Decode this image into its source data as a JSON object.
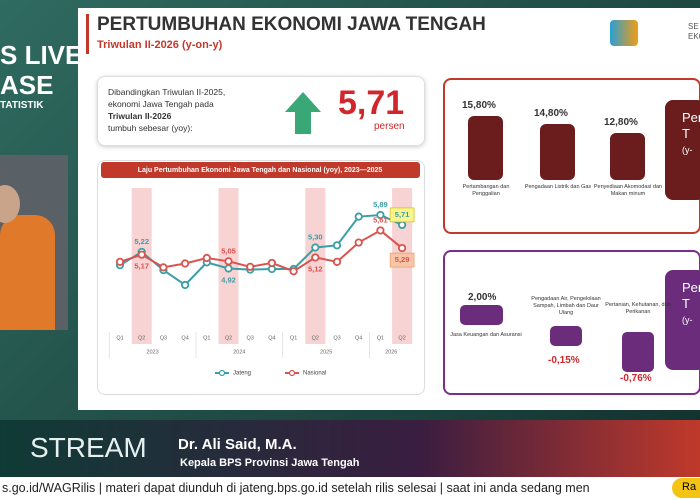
{
  "broadcast": {
    "logo_lines": [
      "S LIVE",
      "ASE",
      "TATISTIK"
    ],
    "stream": "STREAM",
    "speaker": "Dr. Ali Said, M.A.",
    "speaker_role": "Kepala BPS Provinsi Jawa Tengah",
    "ticker": "s.go.id/WAGRilis | materi dapat diunduh di jateng.bps.go.id setelah rilis selesai | saat ini anda sedang men",
    "ticker_tag": "Ra"
  },
  "slide": {
    "title": "PERTUMBUHAN EKONOMI JAWA TENGAH",
    "subtitle": "Triwulan II-2026 (y-on-y)",
    "logo_lines": [
      "SE",
      "EKONO"
    ],
    "summary": {
      "lines": [
        "Dibandingkan Triwulan II-2025,",
        "ekonomi Jawa Tengah pada",
        "Triwulan II-2026",
        "tumbuh sebesar (yoy):"
      ],
      "value": "5,71",
      "unit": "persen"
    },
    "top_sectors": [
      {
        "value": "15,80%",
        "label": "Pertambangan dan Penggalian"
      },
      {
        "value": "14,80%",
        "label": "Pengadaan Listrik dan Gas"
      },
      {
        "value": "12,80%",
        "label": "Penyediaan Akomodasi dan Makan minum"
      }
    ],
    "top_panel_lines": [
      "Per",
      "T",
      "(y-"
    ],
    "bottom_sectors": [
      {
        "value": "2,00%",
        "label": "Jasa Keuangan dan Asuransi"
      },
      {
        "value": "-0,15%",
        "label": "Pengadaan Air, Pengelolaan Sampah, Limbah dan Daur Ulang"
      },
      {
        "value": "-0,76%",
        "label": "Pertanian, Kehutanan, dan Perikanan"
      }
    ],
    "bottom_panel_lines": [
      "Per",
      "T",
      "(y-"
    ]
  },
  "chart_data": {
    "type": "line",
    "title": "Laju Pertumbuhan Ekonomi Jawa Tengah dan Nasional (yoy), 2023—2025",
    "categories": [
      "Q1",
      "Q2",
      "Q3",
      "Q4",
      "Q1",
      "Q2",
      "Q3",
      "Q4",
      "Q1",
      "Q2",
      "Q3",
      "Q4",
      "Q1",
      "Q2"
    ],
    "groups": [
      "2023",
      "2024",
      "2025",
      "2026"
    ],
    "series": [
      {
        "name": "Jateng",
        "color": "#3a9ea5",
        "values": [
          4.98,
          5.22,
          4.89,
          4.62,
          5.03,
          4.92,
          4.9,
          4.91,
          4.91,
          5.3,
          5.34,
          5.86,
          5.89,
          5.71
        ],
        "value_labels": [
          null,
          "5,22",
          null,
          null,
          null,
          "4,92",
          null,
          null,
          null,
          "5,30",
          null,
          null,
          "5,89",
          "5,71"
        ]
      },
      {
        "name": "Nasional",
        "color": "#d9534f",
        "values": [
          5.04,
          5.17,
          4.94,
          5.01,
          5.11,
          5.05,
          4.95,
          5.02,
          4.87,
          5.12,
          5.04,
          5.39,
          5.61,
          5.29
        ],
        "value_labels": [
          null,
          "5,17",
          null,
          null,
          null,
          "5,05",
          null,
          null,
          null,
          "5,12",
          null,
          null,
          "5,61",
          "5,29"
        ]
      }
    ]
  }
}
